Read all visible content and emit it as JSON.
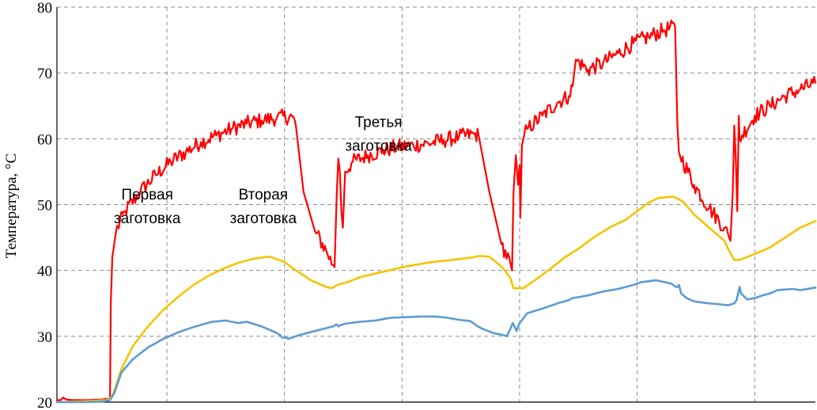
{
  "chart_data": {
    "type": "line",
    "title": "",
    "xlabel": "",
    "ylabel": "Температура, °C",
    "ylim": [
      20,
      80
    ],
    "xlim": [
      0,
      100
    ],
    "yticks": [
      20,
      30,
      40,
      50,
      60,
      70,
      80
    ],
    "xgrid": [
      14.5,
      30,
      45.5,
      61,
      76.5,
      92
    ],
    "grid": true,
    "legend": "none",
    "series": [
      {
        "color": "#ff0000",
        "noise": 1.2,
        "x": [
          0,
          0.5,
          0.8,
          1.2,
          2,
          4,
          6,
          7.0,
          7.1,
          7.3,
          7.8,
          9,
          11,
          13,
          15,
          17,
          19,
          21,
          23,
          25,
          27,
          29,
          31,
          31.5,
          32.5,
          34,
          35.5,
          36.4,
          36.6,
          36.9,
          37.1,
          37.3,
          37.5,
          37.7,
          38,
          39,
          41,
          43,
          45,
          47,
          49,
          51,
          53,
          55,
          55.6,
          57,
          58.6,
          59.8,
          60.0,
          60.2,
          60.5,
          60.8,
          61.0,
          61.1,
          61.3,
          61.6,
          62,
          64,
          66,
          67.5,
          68,
          68.4,
          70,
          72,
          74,
          76,
          78,
          80,
          81.5,
          81.8,
          82,
          84,
          86,
          88,
          88.6,
          88.8,
          89.1,
          89.3,
          89.5,
          89.7,
          89.9,
          90,
          92,
          94,
          96,
          98,
          100
        ],
        "y": [
          20.3,
          20.3,
          20.7,
          20.4,
          20.3,
          20.3,
          20.4,
          20.6,
          35,
          42,
          46,
          49,
          52,
          54.5,
          56.5,
          58,
          59.5,
          60.5,
          61.5,
          62.3,
          62.8,
          63.2,
          63.4,
          62,
          52,
          46,
          43,
          40.8,
          40.5,
          52,
          57,
          55,
          49,
          46.5,
          55,
          56.5,
          57.5,
          58.2,
          58.8,
          59,
          59.3,
          59.8,
          60.3,
          60.7,
          60.5,
          52,
          44,
          41,
          40,
          52,
          57.5,
          53,
          56,
          48,
          59,
          60.5,
          61.5,
          63.5,
          65.5,
          66.5,
          68,
          72,
          70.5,
          71.5,
          73,
          74.5,
          75.5,
          76.5,
          77,
          62,
          58,
          53,
          49.5,
          46.5,
          45,
          44.5,
          52,
          62,
          57,
          49,
          63.5,
          60,
          63.5,
          65,
          66.5,
          67.5,
          68.5
        ]
      },
      {
        "color": "#f5c400",
        "noise": 0,
        "x": [
          0,
          3,
          5,
          6.5,
          7.3,
          8.5,
          10,
          12,
          14,
          16,
          18,
          20,
          22,
          24,
          26,
          28,
          30,
          31.5,
          33.5,
          35.5,
          36.2,
          37,
          38.5,
          40,
          43,
          46,
          49,
          52,
          55,
          55.6,
          57,
          58.7,
          59.8,
          60.2,
          61.5,
          63,
          65,
          67,
          69,
          71,
          73,
          75,
          76.5,
          78,
          79.3,
          80,
          81.3,
          82.5,
          84,
          86,
          88,
          88.6,
          89.3,
          90,
          92,
          94,
          96,
          98,
          100
        ],
        "y": [
          20,
          20.1,
          20.2,
          20.3,
          20.8,
          25,
          28.5,
          31.5,
          34,
          36,
          37.8,
          39.2,
          40.3,
          41.2,
          41.8,
          42.1,
          41.3,
          40,
          38.5,
          37.5,
          37.3,
          37.8,
          38.3,
          39,
          39.8,
          40.6,
          41.2,
          41.6,
          42,
          42.2,
          42.1,
          40.5,
          38.8,
          37.3,
          37.3,
          38.5,
          40.2,
          42,
          43.5,
          45.2,
          46.6,
          47.7,
          49,
          50.3,
          51,
          51.1,
          51.2,
          50.5,
          48.5,
          46.5,
          44.5,
          43,
          41.6,
          41.6,
          42.5,
          43.5,
          45,
          46.5,
          47.5
        ]
      },
      {
        "color": "#5b9bd5",
        "noise": 0,
        "x": [
          0,
          4,
          6,
          7.0,
          7.6,
          8.5,
          10,
          12,
          14,
          16,
          18,
          19.5,
          20.5,
          21.5,
          22.2,
          23,
          24,
          25,
          27,
          29,
          29.4,
          29.7,
          30.2,
          30.5,
          31,
          32,
          34,
          36.4,
          36.8,
          37,
          37.1,
          37.4,
          38,
          40,
          42,
          43,
          44,
          46,
          48,
          50,
          51.5,
          53,
          54.5,
          55.5,
          56,
          57.5,
          58.8,
          59.3,
          59.8,
          60.1,
          60.6,
          61,
          62,
          64,
          66,
          67.5,
          68,
          70,
          72,
          74,
          76,
          77,
          79,
          81,
          81.6,
          81.8,
          82,
          82.3,
          83,
          84,
          86,
          87,
          88.5,
          89.3,
          89.6,
          90.0,
          90.2,
          91,
          92,
          93,
          94,
          95,
          96,
          97,
          98,
          100
        ],
        "y": [
          20,
          20,
          20.1,
          20.3,
          21.5,
          24.5,
          26.5,
          28.3,
          29.6,
          30.6,
          31.4,
          31.9,
          32.2,
          32.3,
          32.4,
          32.2,
          32,
          32.2,
          31.5,
          30.5,
          30.2,
          29.8,
          29.8,
          29.6,
          29.8,
          30.2,
          30.8,
          31.5,
          31.8,
          31.7,
          31.5,
          31.7,
          31.9,
          32.2,
          32.4,
          32.6,
          32.8,
          32.9,
          33,
          33,
          32.8,
          32.5,
          32.3,
          31.5,
          31.2,
          30.5,
          30.2,
          30,
          31.2,
          32,
          30.8,
          32,
          33.5,
          34.2,
          35,
          35.5,
          35.8,
          36.2,
          36.8,
          37.2,
          37.8,
          38.2,
          38.5,
          38,
          37.5,
          37.5,
          37.8,
          36.5,
          35.8,
          35.3,
          35,
          34.9,
          34.7,
          35,
          35.5,
          37.5,
          36.5,
          35.6,
          35.8,
          36.2,
          36.5,
          37,
          37.1,
          37.2,
          37,
          37.4
        ]
      }
    ],
    "annotations": [
      {
        "lines": [
          "Первая",
          "заготовка"
        ],
        "x": 11.9,
        "y": 50.8
      },
      {
        "lines": [
          "Вторая",
          "заготовка"
        ],
        "x": 27.2,
        "y": 50.8
      },
      {
        "lines": [
          "Третья",
          "заготовка"
        ],
        "x": 42.4,
        "y": 61.8
      }
    ]
  }
}
